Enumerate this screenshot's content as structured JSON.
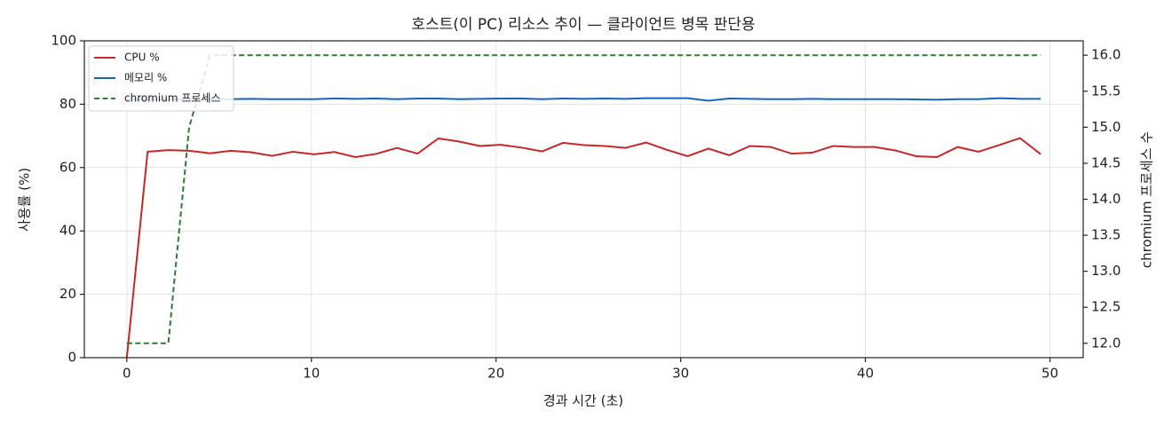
{
  "chart_data": {
    "type": "line",
    "title": "호스트(이 PC) 리소스 추이 — 클라이언트 병목 판단용",
    "xlabel": "경과 시간 (초)",
    "ylabel": "사용률 (%)",
    "y2label": "chromium 프로세스 수",
    "x": [
      0,
      1.125,
      2.25,
      3.375,
      4.5,
      5.625,
      6.75,
      7.875,
      9,
      10.125,
      11.25,
      12.375,
      13.5,
      14.625,
      15.75,
      16.875,
      18,
      19.125,
      20.25,
      21.375,
      22.5,
      23.625,
      24.75,
      25.875,
      27,
      28.125,
      29.25,
      30.375,
      31.5,
      32.625,
      33.75,
      34.875,
      36,
      37.125,
      38.25,
      39.375,
      40.5,
      41.625,
      42.75,
      43.875,
      45,
      46.125,
      47.25,
      48.375,
      49.5
    ],
    "series": [
      {
        "name": "CPU %",
        "color": "#c62828",
        "style": "solid",
        "values": [
          0,
          65,
          65.5,
          65.3,
          64.5,
          65.3,
          64.8,
          63.7,
          65,
          64.2,
          64.9,
          63.3,
          64.3,
          66.2,
          64.4,
          69.2,
          68.2,
          66.8,
          67.2,
          66.3,
          65.1,
          67.8,
          67.1,
          66.8,
          66.2,
          67.9,
          65.6,
          63.6,
          66,
          63.9,
          66.8,
          66.5,
          64.4,
          64.7,
          66.8,
          66.5,
          66.5,
          65.4,
          63.6,
          63.3,
          66.5,
          65,
          67.1,
          69.3,
          64.2
        ]
      },
      {
        "name": "메모리 %",
        "color": "#1565c0",
        "style": "solid",
        "values": [
          81.4,
          81.5,
          81.5,
          81.6,
          81.5,
          81.6,
          81.7,
          81.6,
          81.6,
          81.6,
          81.8,
          81.7,
          81.8,
          81.6,
          81.8,
          81.8,
          81.6,
          81.7,
          81.8,
          81.8,
          81.6,
          81.8,
          81.7,
          81.8,
          81.7,
          81.9,
          81.9,
          81.9,
          81.1,
          81.8,
          81.7,
          81.6,
          81.6,
          81.7,
          81.6,
          81.6,
          81.6,
          81.6,
          81.5,
          81.4,
          81.6,
          81.6,
          81.9,
          81.7,
          81.7
        ]
      },
      {
        "name": "chromium 프로세스",
        "color": "#2e7d32",
        "style": "dashed",
        "axis": "y2",
        "values": [
          12,
          12,
          12,
          15,
          16,
          16,
          16,
          16,
          16,
          16,
          16,
          16,
          16,
          16,
          16,
          16,
          16,
          16,
          16,
          16,
          16,
          16,
          16,
          16,
          16,
          16,
          16,
          16,
          16,
          16,
          16,
          16,
          16,
          16,
          16,
          16,
          16,
          16,
          16,
          16,
          16,
          16,
          16,
          16,
          16
        ]
      }
    ],
    "xlim": [
      -2.3,
      51.8
    ],
    "xticks": [
      0,
      10,
      20,
      30,
      40,
      50
    ],
    "ylim": [
      0,
      100
    ],
    "yticks": [
      0,
      20,
      40,
      60,
      80,
      100
    ],
    "y2lim": [
      11.8,
      16.2
    ],
    "y2ticks": [
      {
        "value": 12,
        "label": "12.0"
      },
      12.5,
      {
        "value": 13,
        "label": "13.0"
      },
      13.5,
      {
        "value": 14,
        "label": "14.0"
      },
      14.5,
      {
        "value": 15,
        "label": "15.0"
      },
      15.5,
      {
        "value": 16,
        "label": "16.0"
      }
    ],
    "grid": true,
    "legend": "upper-left"
  }
}
